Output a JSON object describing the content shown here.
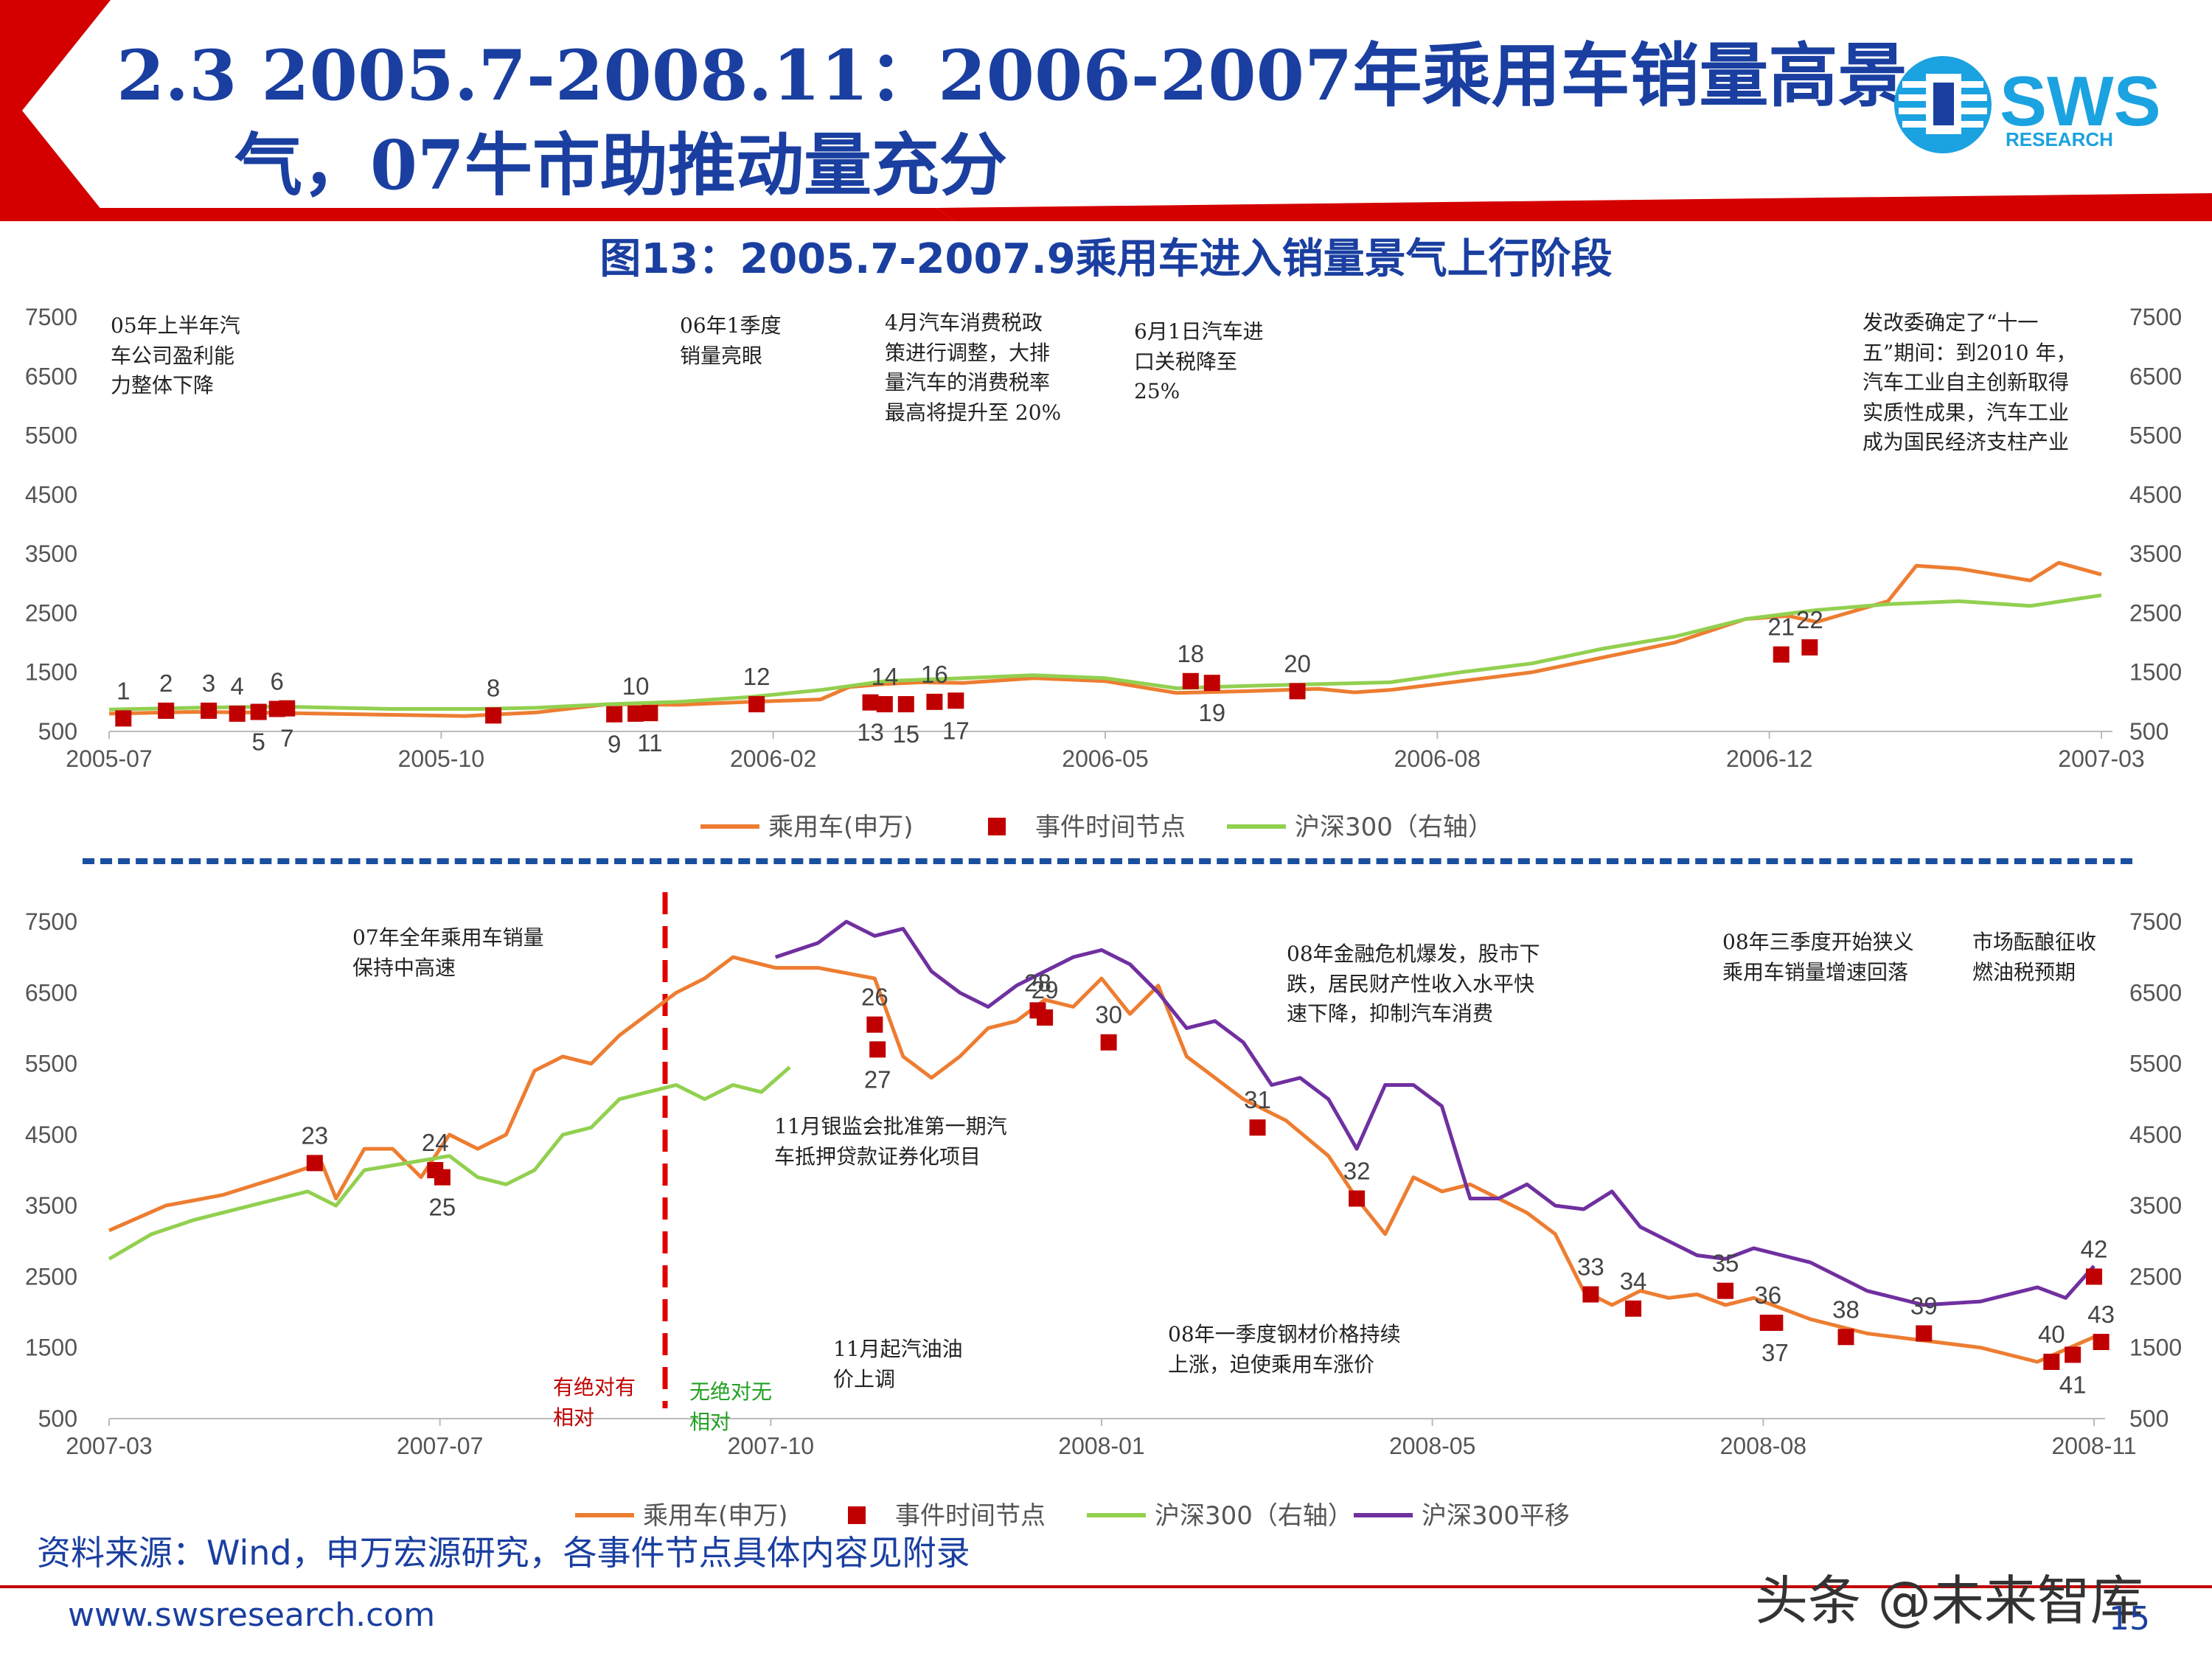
{
  "header": {
    "title_line1": "2.3 2005.7-2008.11：2006-2007年乘用车销量高景",
    "title_line2": "气，07牛市助推动量充分",
    "logo_text": "SWS",
    "logo_subtext": "RESEARCH"
  },
  "figure_title": "图13：2005.7-2007.9乘用车进入销量景气上行阶段",
  "legend1": {
    "car": "乘用车(申万)",
    "event": "事件时间节点",
    "hs300": "沪深300（右轴）"
  },
  "legend2": {
    "car": "乘用车(申万)",
    "event": "事件时间节点",
    "hs300": "沪深300（右轴）",
    "hs300_shift": "沪深300平移"
  },
  "annotations1": {
    "a1": "05年上半年汽\n车公司盈利能\n力整体下降",
    "a2": "06年1季度\n销量亮眼",
    "a3": "4月汽车消费税政\n策进行调整，大排\n量汽车的消费税率\n最高将提升至 20%",
    "a4": "6月1日汽车进\n口关税降至\n25%",
    "a5": "发改委确定了“十一\n五”期间：到2010 年，\n汽车工业自主创新取得\n实质性成果，汽车工业\n成为国民经济支柱产业"
  },
  "annotations2": {
    "a1": "07年全年乘用车销量\n保持中高速",
    "a2": "11月银监会批准第一期汽\n车抵押贷款证券化项目",
    "a3": "11月起汽油油\n价上调",
    "a4": "08年金融危机爆发，股市下\n跌，居民财产性收入水平快\n速下降，抑制汽车消费",
    "a5": "08年一季度钢材价格持续\n上涨，迫使乘用车涨价",
    "a6": "08年三季度开始狭义\n乘用车销量增速回落",
    "a7": "市场酝酿征收\n燃油税预期",
    "red_label": "有绝对有\n相对",
    "green_label": "无绝对无\n相对"
  },
  "source": "资料来源：Wind，申万宏源研究，各事件节点具体内容见附录",
  "website": "www.swsresearch.com",
  "watermark": "头条 @未来智库",
  "page_number": "15",
  "colors": {
    "car": "#ed7d31",
    "event": "#c00000",
    "hs300": "#92d050",
    "hs300_shift": "#7030a0",
    "title": "#1a3fa0"
  },
  "chart_data": [
    {
      "type": "line",
      "title": "",
      "x_ticks": [
        "2005-07",
        "2005-10",
        "2006-02",
        "2006-05",
        "2006-08",
        "2006-12",
        "2007-03"
      ],
      "y_ticks": [
        "500",
        "1500",
        "2500",
        "3500",
        "4500",
        "5500",
        "6500",
        "7500"
      ],
      "ylim": [
        500,
        7500
      ],
      "y2_ticks": [
        "500",
        "1500",
        "2500",
        "3500",
        "4500",
        "5500",
        "6500",
        "7500"
      ],
      "series": [
        {
          "name": "乘用车(申万)",
          "color": "#ed7d31",
          "x": [
            0,
            20,
            60,
            100,
            150,
            200,
            250,
            300,
            350,
            400,
            450,
            500,
            520,
            545,
            570,
            600,
            650,
            700,
            750,
            800,
            850,
            875,
            900,
            950,
            1000,
            1050,
            1100,
            1150,
            1180,
            1200,
            1250,
            1270,
            1300,
            1350,
            1370,
            1400
          ],
          "values": [
            800,
            810,
            830,
            820,
            800,
            780,
            760,
            820,
            960,
            950,
            1000,
            1040,
            1250,
            1300,
            1330,
            1320,
            1400,
            1350,
            1150,
            1180,
            1220,
            1160,
            1200,
            1350,
            1500,
            1750,
            2000,
            2400,
            2450,
            2350,
            2700,
            3300,
            3250,
            3050,
            3350,
            3150
          ]
        },
        {
          "name": "沪深300（右轴）",
          "color": "#92d050",
          "x": [
            0,
            60,
            120,
            200,
            260,
            300,
            350,
            400,
            450,
            500,
            545,
            600,
            650,
            700,
            750,
            800,
            850,
            900,
            950,
            1000,
            1050,
            1100,
            1150,
            1200,
            1250,
            1300,
            1350,
            1400
          ],
          "values": [
            870,
            900,
            920,
            880,
            880,
            900,
            960,
            1000,
            1080,
            1200,
            1350,
            1400,
            1450,
            1400,
            1230,
            1270,
            1300,
            1330,
            1500,
            1650,
            1900,
            2100,
            2400,
            2550,
            2650,
            2700,
            2620,
            2800
          ]
        },
        {
          "name": "事件时间节点",
          "color": "#c00000",
          "type": "scatter",
          "labels": [
            "1",
            "2",
            "3",
            "4",
            "5",
            "6",
            "7",
            "8",
            "9",
            "10",
            "11",
            "12",
            "13",
            "14",
            "15",
            "16",
            "17",
            "18",
            "19",
            "20",
            "21",
            "22"
          ],
          "x": [
            10,
            40,
            70,
            90,
            105,
            118,
            125,
            270,
            355,
            370,
            380,
            455,
            535,
            545,
            560,
            580,
            595,
            760,
            775,
            835,
            1175,
            1195
          ],
          "values": [
            720,
            850,
            850,
            800,
            830,
            880,
            890,
            770,
            790,
            800,
            810,
            960,
            990,
            960,
            960,
            1000,
            1020,
            1350,
            1320,
            1180,
            1800,
            1920
          ]
        }
      ]
    },
    {
      "type": "line",
      "title": "",
      "x_ticks": [
        "2007-03",
        "2007-07",
        "2007-10",
        "2008-01",
        "2008-05",
        "2008-08",
        "2008-11"
      ],
      "y_ticks": [
        "500",
        "1500",
        "2500",
        "3500",
        "4500",
        "5500",
        "6500",
        "7500"
      ],
      "ylim": [
        500,
        7500
      ],
      "y2_ticks": [
        "500",
        "1500",
        "2500",
        "3500",
        "4500",
        "5500",
        "6500",
        "7500"
      ],
      "series": [
        {
          "name": "乘用车(申万)",
          "color": "#ed7d31",
          "x": [
            0,
            40,
            80,
            120,
            150,
            160,
            180,
            200,
            220,
            240,
            260,
            280,
            300,
            320,
            340,
            360,
            380,
            400,
            420,
            440,
            460,
            470,
            500,
            540,
            560,
            580,
            600,
            620,
            640,
            660,
            680,
            700,
            720,
            740,
            760,
            780,
            800,
            830,
            860,
            880,
            900,
            920,
            940,
            960,
            980,
            1000,
            1020,
            1040,
            1060,
            1080,
            1100,
            1120,
            1140,
            1160,
            1200,
            1240,
            1280,
            1320,
            1360,
            1400
          ],
          "values": [
            3150,
            3500,
            3650,
            3900,
            4100,
            3600,
            4300,
            4300,
            3900,
            4500,
            4300,
            4500,
            5400,
            5600,
            5500,
            5900,
            6200,
            6500,
            6700,
            7000,
            6900,
            6850,
            6850,
            6700,
            5600,
            5300,
            5600,
            6000,
            6100,
            6400,
            6300,
            6700,
            6200,
            6600,
            5600,
            5300,
            5000,
            4700,
            4200,
            3600,
            3100,
            3900,
            3700,
            3800,
            3600,
            3400,
            3100,
            2300,
            2100,
            2300,
            2200,
            2250,
            2100,
            2200,
            1900,
            1700,
            1600,
            1500,
            1300,
            1650
          ]
        },
        {
          "name": "沪深300（右轴）",
          "color": "#92d050",
          "x": [
            0,
            30,
            60,
            100,
            140,
            160,
            180,
            210,
            240,
            260,
            280,
            300,
            320,
            340,
            360,
            380,
            400,
            420,
            440,
            460,
            480
          ],
          "values": [
            2750,
            3100,
            3300,
            3500,
            3700,
            3500,
            4000,
            4100,
            4200,
            3900,
            3800,
            4000,
            4500,
            4600,
            5000,
            5100,
            5200,
            5000,
            5200,
            5100,
            5450
          ]
        },
        {
          "name": "沪深300平移",
          "color": "#7030a0",
          "x": [
            470,
            500,
            520,
            540,
            560,
            580,
            600,
            620,
            640,
            660,
            680,
            700,
            720,
            740,
            760,
            780,
            800,
            820,
            840,
            860,
            880,
            900,
            920,
            940,
            960,
            980,
            1000,
            1020,
            1040,
            1060,
            1080,
            1100,
            1120,
            1140,
            1160,
            1200,
            1240,
            1280,
            1320,
            1360,
            1380,
            1400
          ],
          "values": [
            7000,
            7200,
            7500,
            7300,
            7400,
            6800,
            6500,
            6300,
            6600,
            6800,
            7000,
            7100,
            6900,
            6500,
            6000,
            6100,
            5800,
            5200,
            5300,
            5000,
            4300,
            5200,
            5200,
            4900,
            3600,
            3600,
            3800,
            3500,
            3450,
            3700,
            3200,
            3000,
            2800,
            2750,
            2900,
            2700,
            2300,
            2100,
            2150,
            2350,
            2200,
            2650
          ]
        },
        {
          "name": "事件时间节点",
          "color": "#c00000",
          "type": "scatter",
          "labels": [
            "23",
            "24",
            "25",
            "26",
            "27",
            "28",
            "29",
            "30",
            "31",
            "32",
            "33",
            "34",
            "35",
            "36",
            "37",
            "38",
            "39",
            "40",
            "41",
            "42",
            "43"
          ],
          "x": [
            145,
            230,
            235,
            540,
            542,
            655,
            660,
            705,
            810,
            880,
            1045,
            1075,
            1140,
            1170,
            1175,
            1225,
            1280,
            1370,
            1385,
            1400,
            1405
          ],
          "values": [
            4100,
            4000,
            3900,
            6050,
            5700,
            6250,
            6150,
            5800,
            4600,
            3600,
            2250,
            2050,
            2300,
            1850,
            1850,
            1650,
            1700,
            1300,
            1400,
            2500,
            1580
          ]
        }
      ]
    }
  ]
}
